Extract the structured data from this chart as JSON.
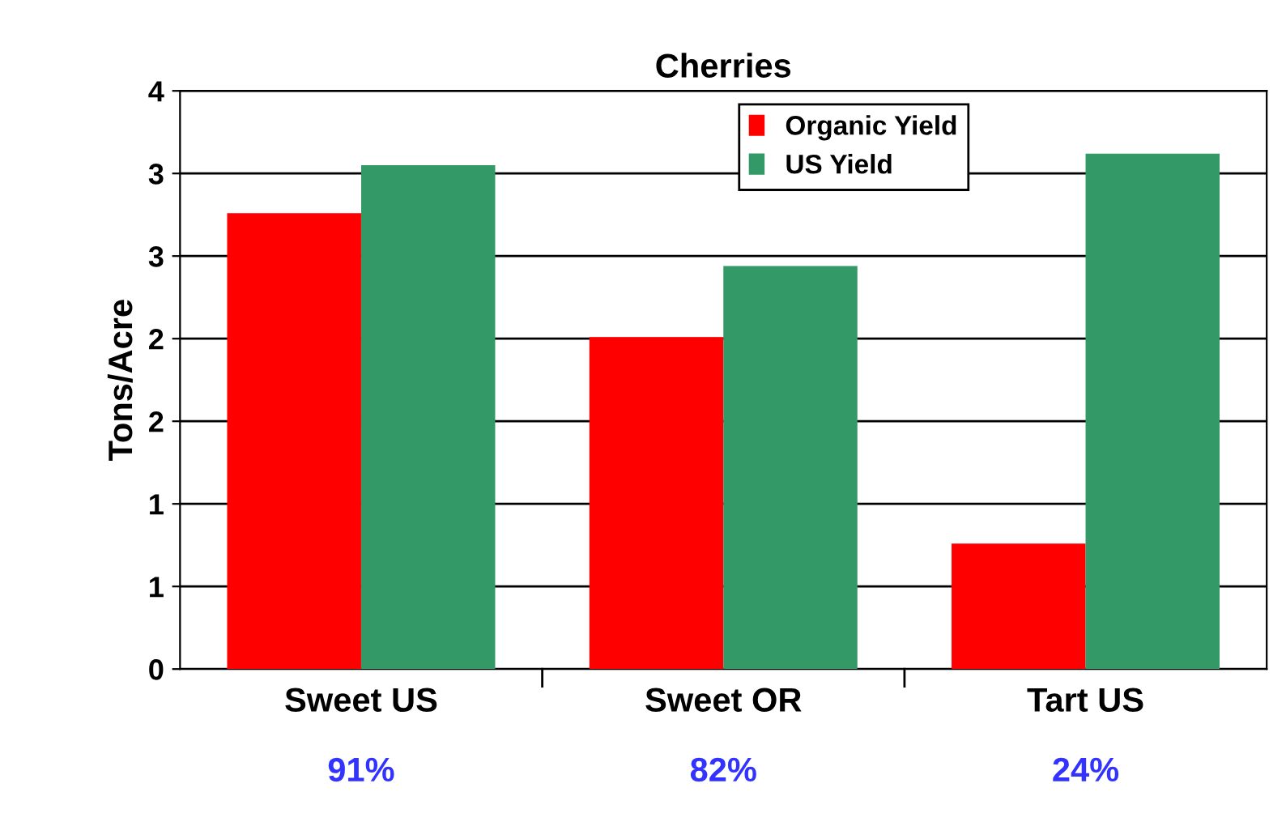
{
  "chart_data": {
    "type": "bar",
    "title": "Cherries",
    "ylabel": "Tons/Acre",
    "categories": [
      "Sweet US",
      "Sweet OR",
      "Tart US"
    ],
    "series": [
      {
        "name": "Organic Yield",
        "color": "#ff0000",
        "values": [
          2.76,
          2.01,
          0.76
        ]
      },
      {
        "name": "US Yield",
        "color": "#339966",
        "values": [
          3.05,
          2.44,
          3.12
        ]
      }
    ],
    "ylim": [
      0,
      3.5
    ],
    "yticks": [
      0,
      {
        "value": 0.5,
        "label": "1"
      },
      1,
      {
        "value": 1.5,
        "label": "2"
      },
      2,
      {
        "value": 2.5,
        "label": "3"
      },
      3,
      {
        "value": 3.5,
        "label": "4"
      }
    ],
    "grid": "y",
    "legend": "top",
    "annotations": [
      "91%",
      "82%",
      "24%"
    ]
  }
}
